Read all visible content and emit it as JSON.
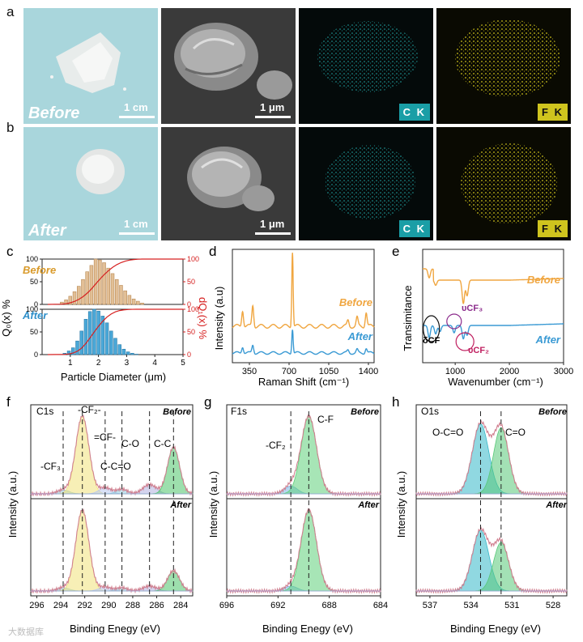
{
  "figure": {
    "panels": {
      "a": {
        "letter": "a",
        "state": "Before",
        "scale_photo": "1 cm",
        "scale_sem": "1 μm",
        "map1": "C K",
        "map2": "F K"
      },
      "b": {
        "letter": "b",
        "state": "After",
        "scale_photo": "1 cm",
        "scale_sem": "1 μm",
        "map1": "C K",
        "map2": "F K"
      },
      "c": {
        "letter": "c",
        "left_axis": "Q₀(x) %",
        "right_axis": "dQ₁(x) %",
        "xlabel": "Particle Diameter (μm)",
        "label_before": "Before",
        "label_after": "After"
      },
      "d": {
        "letter": "d",
        "ylabel": "Intensity (a.u)",
        "xlabel": "Raman Shift (cm⁻¹)",
        "label_before": "Before",
        "label_after": "After"
      },
      "e": {
        "letter": "e",
        "ylabel": "Transimitance",
        "xlabel": "Wavenumber (cm⁻¹)",
        "label_before": "Before",
        "label_after": "After",
        "ann_dcf": "δCF",
        "ann_ucf3": "υCF₃",
        "ann_ucf2": "υCF₂"
      },
      "f": {
        "letter": "f",
        "title": "C1s",
        "ylabel": "Intensity (a.u.)",
        "xlabel": "Binding Enegy (eV)",
        "label_before": "Before",
        "label_after": "After",
        "peaks": [
          "-CF₃",
          "-CF₂-",
          "=CF-",
          "C-C=O",
          "C-O",
          "C-C"
        ]
      },
      "g": {
        "letter": "g",
        "title": "F1s",
        "ylabel": "Intensity (a.u.)",
        "xlabel": "Binding Enegy (eV)",
        "label_before": "Before",
        "label_after": "After",
        "peaks": [
          "-CF₂",
          "C-F"
        ]
      },
      "h": {
        "letter": "h",
        "title": "O1s",
        "ylabel": "Intensity (a.u.)",
        "xlabel": "Binding Enegy (eV)",
        "label_before": "Before",
        "label_after": "After",
        "peaks": [
          "O-C=O",
          "C=O"
        ]
      }
    },
    "watermark": "大数据库",
    "colors": {
      "before": "#f0a640",
      "after": "#3a9ad4",
      "red": "#d62020",
      "teal": "#1aa0a8",
      "yellow": "#d7c818",
      "photo_bg": "#a9d6dc"
    }
  },
  "chart_data": [
    {
      "id": "c",
      "type": "bar",
      "title": "",
      "xlabel": "Particle Diameter (μm)",
      "xticks": [
        1,
        2,
        3,
        4,
        5
      ],
      "xlim": [
        0,
        5
      ],
      "ylim": [
        0,
        100
      ],
      "yticks": [
        0,
        50,
        100
      ],
      "series": [
        {
          "name": "Before",
          "x": [
            0.7,
            0.85,
            1.0,
            1.15,
            1.3,
            1.45,
            1.6,
            1.75,
            1.9,
            2.05,
            2.2,
            2.35,
            2.5,
            2.65,
            2.8,
            2.95,
            3.1,
            3.25,
            3.4,
            3.55
          ],
          "values": [
            5,
            10,
            18,
            28,
            40,
            55,
            72,
            86,
            100,
            98,
            92,
            80,
            68,
            55,
            42,
            30,
            20,
            12,
            7,
            3
          ]
        },
        {
          "name": "After",
          "x": [
            0.8,
            0.95,
            1.1,
            1.25,
            1.4,
            1.55,
            1.7,
            1.85,
            2.0,
            2.15,
            2.3,
            2.45,
            2.6,
            2.75,
            2.9,
            3.05,
            3.2,
            3.35
          ],
          "values": [
            3,
            8,
            15,
            30,
            52,
            78,
            95,
            100,
            96,
            85,
            70,
            52,
            36,
            22,
            12,
            6,
            3,
            1
          ]
        }
      ]
    },
    {
      "id": "d",
      "type": "line",
      "xlabel": "Raman Shift (cm⁻¹)",
      "xticks": [
        350,
        700,
        1050,
        1400
      ],
      "xlim": [
        200,
        1450
      ],
      "series": [
        {
          "name": "Before",
          "peaks": [
            [
              290,
              0.35
            ],
            [
              380,
              0.45
            ],
            [
              730,
              1.6
            ],
            [
              1220,
              0.12
            ],
            [
              1300,
              0.18
            ],
            [
              1380,
              0.3
            ]
          ]
        },
        {
          "name": "After",
          "peaks": [
            [
              290,
              0.2
            ],
            [
              380,
              0.25
            ],
            [
              730,
              0.75
            ],
            [
              1220,
              0.08
            ],
            [
              1300,
              0.1
            ],
            [
              1380,
              0.15
            ]
          ]
        }
      ]
    },
    {
      "id": "e",
      "type": "line",
      "xlabel": "Wavenumber (cm⁻¹)",
      "xticks": [
        1000,
        2000,
        3000
      ],
      "xlim": [
        400,
        3000
      ],
      "series": [
        {
          "name": "Before",
          "dips": [
            [
              520,
              0.35
            ],
            [
              640,
              0.2
            ],
            [
              1150,
              0.9
            ],
            [
              1220,
              0.6
            ]
          ]
        },
        {
          "name": "After",
          "dips": [
            [
              520,
              0.5
            ],
            [
              640,
              0.35
            ],
            [
              720,
              0.25
            ],
            [
              980,
              0.3
            ],
            [
              1150,
              0.55
            ],
            [
              1220,
              0.4
            ]
          ]
        }
      ]
    },
    {
      "id": "f",
      "type": "line",
      "xlabel": "Binding Enegy (eV)",
      "xticks": [
        296,
        294,
        292,
        290,
        288,
        286,
        284
      ],
      "xlim": [
        296.5,
        283
      ],
      "peaks_eV": [
        293.8,
        292.2,
        290.3,
        288.9,
        286.6,
        284.6
      ],
      "before_heights": [
        0.05,
        1.0,
        0.08,
        0.06,
        0.12,
        0.6
      ],
      "after_heights": [
        0.04,
        1.0,
        0.05,
        0.04,
        0.06,
        0.25
      ]
    },
    {
      "id": "g",
      "type": "line",
      "xlabel": "Binding Enegy (eV)",
      "xticks": [
        696,
        692,
        688,
        684
      ],
      "xlim": [
        696,
        684
      ],
      "peaks_eV": [
        691.0,
        689.6
      ],
      "before_heights": [
        0.1,
        1.0
      ],
      "after_heights": [
        0.06,
        1.0
      ]
    },
    {
      "id": "h",
      "type": "line",
      "xlabel": "Binding Enegy (eV)",
      "xticks": [
        537,
        534,
        531,
        528
      ],
      "xlim": [
        538,
        527
      ],
      "peaks_eV": [
        533.3,
        531.8
      ],
      "before_heights": [
        0.9,
        0.85
      ],
      "after_heights": [
        0.75,
        0.6
      ]
    }
  ]
}
